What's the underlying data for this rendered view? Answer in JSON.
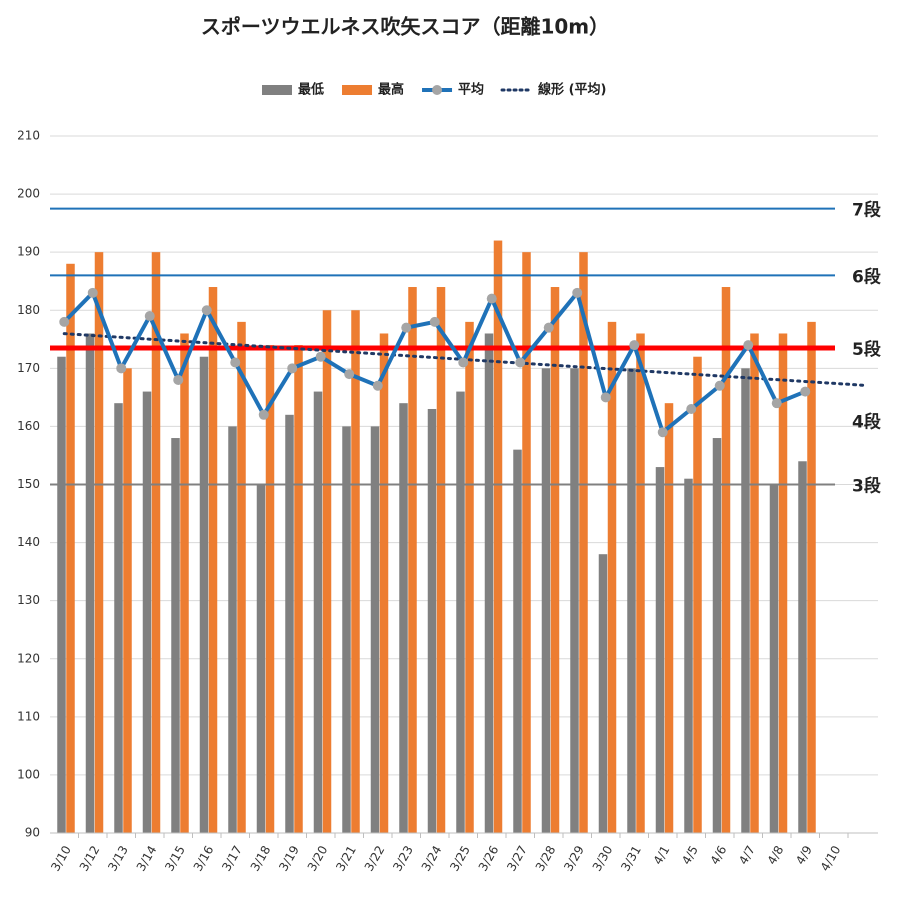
{
  "chart_data": {
    "type": "bar_line",
    "title": "スポーツウエルネス吹矢スコア（距離10m）",
    "categories": [
      "3/10",
      "3/12",
      "3/13",
      "3/14",
      "3/15",
      "3/16",
      "3/17",
      "3/18",
      "3/19",
      "3/20",
      "3/21",
      "3/22",
      "3/23",
      "3/24",
      "3/25",
      "3/26",
      "3/27",
      "3/28",
      "3/29",
      "3/30",
      "3/31",
      "4/1",
      "4/5",
      "4/6",
      "4/7",
      "4/8",
      "4/9",
      "4/10"
    ],
    "series": [
      {
        "name": "最低",
        "kind": "bar",
        "color": "#808080",
        "values": [
          172,
          176,
          164,
          166,
          158,
          172,
          160,
          150,
          162,
          166,
          160,
          160,
          164,
          163,
          166,
          176,
          156,
          170,
          170,
          138,
          170,
          153,
          151,
          158,
          170,
          150,
          154,
          null
        ]
      },
      {
        "name": "最高",
        "kind": "bar",
        "color": "#ed7d31",
        "values": [
          188,
          190,
          170,
          190,
          176,
          184,
          178,
          174,
          174,
          180,
          180,
          176,
          184,
          184,
          178,
          192,
          190,
          184,
          190,
          178,
          176,
          164,
          172,
          184,
          176,
          176,
          178,
          null
        ]
      },
      {
        "name": "平均",
        "kind": "line",
        "color": "#1f72b8",
        "marker_color": "#a5a5a5",
        "values": [
          178,
          183,
          170,
          179,
          168,
          180,
          171,
          162,
          170,
          172,
          169,
          167,
          177,
          178,
          171,
          182,
          171,
          177,
          183,
          165,
          174,
          159,
          163,
          167,
          174,
          164,
          166,
          null
        ]
      },
      {
        "name": "線形 (平均)",
        "kind": "trend",
        "of": 2,
        "color": "#1f3864"
      }
    ],
    "ylim": [
      90,
      210
    ],
    "yticks": [
      90,
      100,
      110,
      120,
      130,
      140,
      150,
      160,
      170,
      180,
      190,
      200,
      210
    ],
    "grid": true,
    "ref_lines": [
      {
        "label": "7段",
        "value": 197.5,
        "line_color": "#1f72b8",
        "label_color": "#222"
      },
      {
        "label": "6段",
        "value": 186,
        "line_color": "#1f72b8",
        "label_color": "#222"
      },
      {
        "label": "5段",
        "value": 173.5,
        "line_color": "#ff0000",
        "label_color": "#1f72b8"
      },
      {
        "label": "4段",
        "value": 161,
        "label_color": "#222"
      },
      {
        "label": "3段",
        "value": 150,
        "line_color": "#808080",
        "label_color": "#222"
      }
    ]
  }
}
